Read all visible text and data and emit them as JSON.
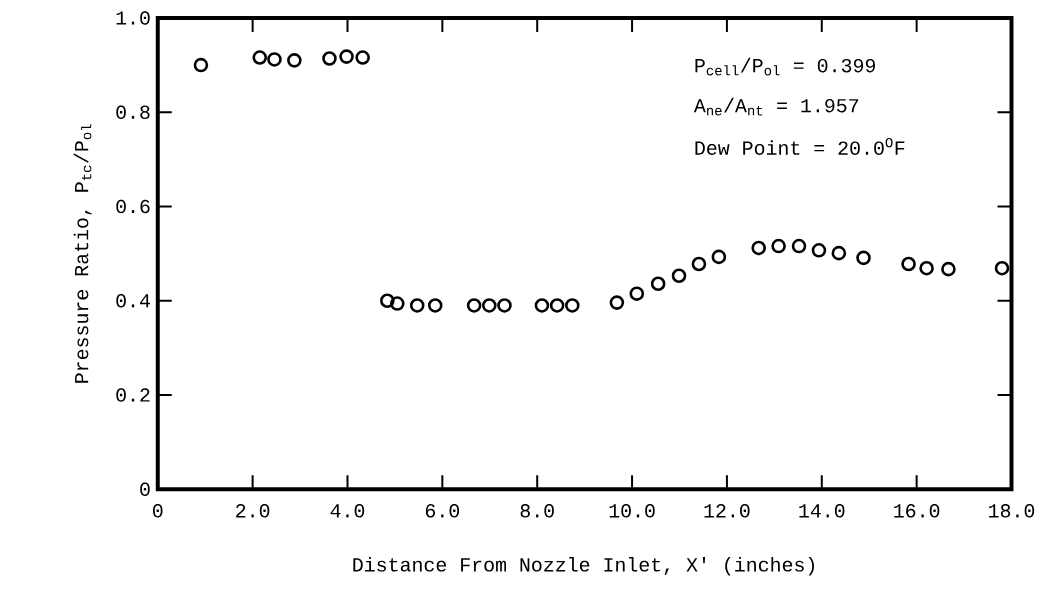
{
  "chart_data": {
    "type": "scatter",
    "xlabel": "Distance From Nozzle Inlet, X' (inches)",
    "ylabel": "Pressure Ratio, P$_{tc}$/P$_{ol}$",
    "annotations": [
      "P$_{cell}$/P$_{ol}$ = 0.399",
      "A$_{ne}$/A$_{nt}$ = 1.957",
      "Dew Point = 20.0$^{O}$F"
    ],
    "x": [
      0.91,
      2.15,
      2.46,
      2.88,
      3.62,
      3.98,
      4.32,
      4.84,
      5.05,
      5.47,
      5.85,
      6.67,
      6.99,
      7.31,
      8.1,
      8.42,
      8.74,
      9.68,
      10.1,
      10.55,
      10.99,
      11.41,
      11.83,
      12.67,
      13.09,
      13.52,
      13.94,
      14.36,
      14.88,
      15.83,
      16.21,
      16.67,
      17.8
    ],
    "series": [
      {
        "color": "#000000",
        "values": [
          0.9,
          0.916,
          0.912,
          0.91,
          0.914,
          0.918,
          0.916,
          0.4,
          0.394,
          0.39,
          0.39,
          0.39,
          0.39,
          0.39,
          0.39,
          0.39,
          0.39,
          0.396,
          0.415,
          0.436,
          0.453,
          0.478,
          0.493,
          0.512,
          0.516,
          0.516,
          0.507,
          0.501,
          0.491,
          0.478,
          0.469,
          0.467,
          0.469
        ]
      }
    ],
    "xlim": [
      0,
      18
    ],
    "ylim": [
      0,
      1.0
    ],
    "xticks": [
      0,
      {
        "value": 2,
        "label": "2.0"
      },
      {
        "value": 4,
        "label": "4.0"
      },
      {
        "value": 6,
        "label": "6.0"
      },
      {
        "value": 8,
        "label": "8.0"
      },
      {
        "value": 10,
        "label": "10.0"
      },
      {
        "value": 12,
        "label": "12.0"
      },
      {
        "value": 14,
        "label": "14.0"
      },
      {
        "value": 16,
        "label": "16.0"
      },
      {
        "value": 18,
        "label": "18.0"
      }
    ],
    "yticks": [
      0,
      0.2,
      0.4,
      0.6,
      0.8,
      {
        "value": 1,
        "label": "1.0"
      }
    ],
    "grid": false,
    "marker": "circle"
  }
}
